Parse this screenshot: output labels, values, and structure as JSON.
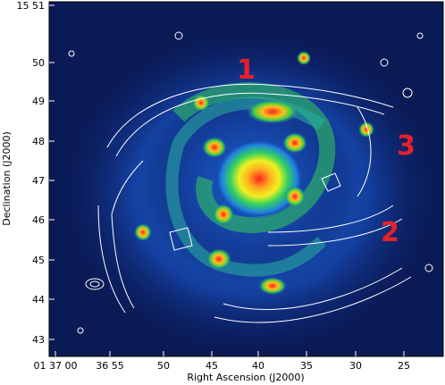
{
  "figure": {
    "x_axis_label": "Right Ascension (J2000)",
    "y_axis_label": "Declination (J2000)",
    "x_tick_labels": [
      "01 37 00",
      "36 55",
      "50",
      "45",
      "40",
      "35",
      "30",
      "25"
    ],
    "y_tick_labels": [
      "15 51",
      "50",
      "49",
      "48",
      "47",
      "46",
      "45",
      "44",
      "43"
    ],
    "annotations": [
      "1",
      "2",
      "3"
    ]
  }
}
